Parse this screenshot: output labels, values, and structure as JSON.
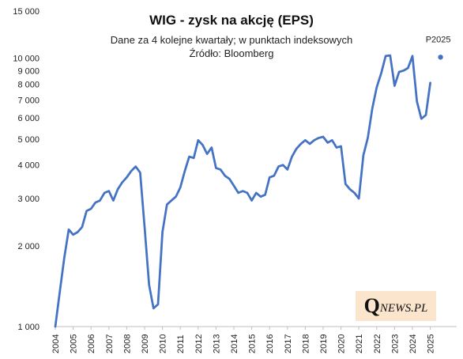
{
  "chart_data": {
    "type": "line",
    "title": "WIG - zysk na akcję (EPS)",
    "subtitle": "Dane za 4 kolejne kwartały; w punktach indeksowych",
    "source": "Źródło: Bloomberg",
    "y_scale": "log",
    "ylim": [
      1000,
      15000
    ],
    "y_ticks": [
      1000,
      2000,
      3000,
      4000,
      5000,
      6000,
      7000,
      8000,
      9000,
      10000,
      15000
    ],
    "y_tick_labels": [
      "1 000",
      "2 000",
      "3 000",
      "4 000",
      "5 000",
      "6 000",
      "7 000",
      "8 000",
      "9 000",
      "10 000",
      "15 000"
    ],
    "x_tick_labels": [
      "2004",
      "2005",
      "2006",
      "2007",
      "2008",
      "2009",
      "2010",
      "2011",
      "2012",
      "2013",
      "2014",
      "2015",
      "2016",
      "2017",
      "2018",
      "2019",
      "2020",
      "2021",
      "2022",
      "2023",
      "2024",
      "2025"
    ],
    "grid": false,
    "series": [
      {
        "color": "#4472c4",
        "points": [
          [
            "2004Q1",
            1000
          ],
          [
            "2004Q2",
            1350
          ],
          [
            "2004Q3",
            1800
          ],
          [
            "2004Q4",
            2300
          ],
          [
            "2005Q1",
            2200
          ],
          [
            "2005Q2",
            2250
          ],
          [
            "2005Q3",
            2350
          ],
          [
            "2005Q4",
            2700
          ],
          [
            "2006Q1",
            2750
          ],
          [
            "2006Q2",
            2900
          ],
          [
            "2006Q3",
            2950
          ],
          [
            "2006Q4",
            3150
          ],
          [
            "2007Q1",
            3200
          ],
          [
            "2007Q2",
            2950
          ],
          [
            "2007Q3",
            3250
          ],
          [
            "2007Q4",
            3450
          ],
          [
            "2008Q1",
            3600
          ],
          [
            "2008Q2",
            3800
          ],
          [
            "2008Q3",
            3950
          ],
          [
            "2008Q4",
            3750
          ],
          [
            "2009Q1",
            2350
          ],
          [
            "2009Q2",
            1430
          ],
          [
            "2009Q3",
            1170
          ],
          [
            "2009Q4",
            1210
          ],
          [
            "2010Q1",
            2250
          ],
          [
            "2010Q2",
            2850
          ],
          [
            "2010Q3",
            2950
          ],
          [
            "2010Q4",
            3050
          ],
          [
            "2011Q1",
            3300
          ],
          [
            "2011Q2",
            3800
          ],
          [
            "2011Q3",
            4300
          ],
          [
            "2011Q4",
            4250
          ],
          [
            "2012Q1",
            4950
          ],
          [
            "2012Q2",
            4750
          ],
          [
            "2012Q3",
            4400
          ],
          [
            "2012Q4",
            4650
          ],
          [
            "2013Q1",
            3900
          ],
          [
            "2013Q2",
            3850
          ],
          [
            "2013Q3",
            3650
          ],
          [
            "2013Q4",
            3550
          ],
          [
            "2014Q1",
            3350
          ],
          [
            "2014Q2",
            3150
          ],
          [
            "2014Q3",
            3200
          ],
          [
            "2014Q4",
            3150
          ],
          [
            "2015Q1",
            2950
          ],
          [
            "2015Q2",
            3150
          ],
          [
            "2015Q3",
            3050
          ],
          [
            "2015Q4",
            3100
          ],
          [
            "2016Q1",
            3600
          ],
          [
            "2016Q2",
            3650
          ],
          [
            "2016Q3",
            3950
          ],
          [
            "2016Q4",
            4000
          ],
          [
            "2017Q1",
            3850
          ],
          [
            "2017Q2",
            4300
          ],
          [
            "2017Q3",
            4600
          ],
          [
            "2017Q4",
            4800
          ],
          [
            "2018Q1",
            4950
          ],
          [
            "2018Q2",
            4800
          ],
          [
            "2018Q3",
            4950
          ],
          [
            "2018Q4",
            5050
          ],
          [
            "2019Q1",
            5100
          ],
          [
            "2019Q2",
            4850
          ],
          [
            "2019Q3",
            4950
          ],
          [
            "2019Q4",
            4650
          ],
          [
            "2020Q1",
            4700
          ],
          [
            "2020Q2",
            3400
          ],
          [
            "2020Q3",
            3250
          ],
          [
            "2020Q4",
            3150
          ],
          [
            "2021Q1",
            3000
          ],
          [
            "2021Q2",
            4350
          ],
          [
            "2021Q3",
            5050
          ],
          [
            "2021Q4",
            6500
          ],
          [
            "2022Q1",
            7800
          ],
          [
            "2022Q2",
            8800
          ],
          [
            "2022Q3",
            10200
          ],
          [
            "2022Q4",
            10250
          ],
          [
            "2023Q1",
            7900
          ],
          [
            "2023Q2",
            8900
          ],
          [
            "2023Q3",
            9000
          ],
          [
            "2023Q4",
            9200
          ],
          [
            "2024Q1",
            10200
          ],
          [
            "2024Q2",
            6900
          ],
          [
            "2024Q3",
            5950
          ],
          [
            "2024Q4",
            6150
          ],
          [
            "2025Q1",
            8100
          ]
        ]
      },
      {
        "name": "P2025",
        "color": "#4472c4",
        "type": "scatter",
        "points": [
          [
            "2025",
            10100
          ]
        ]
      }
    ]
  },
  "logo": {
    "q": "Q",
    "rest": "NEWS.PL"
  }
}
